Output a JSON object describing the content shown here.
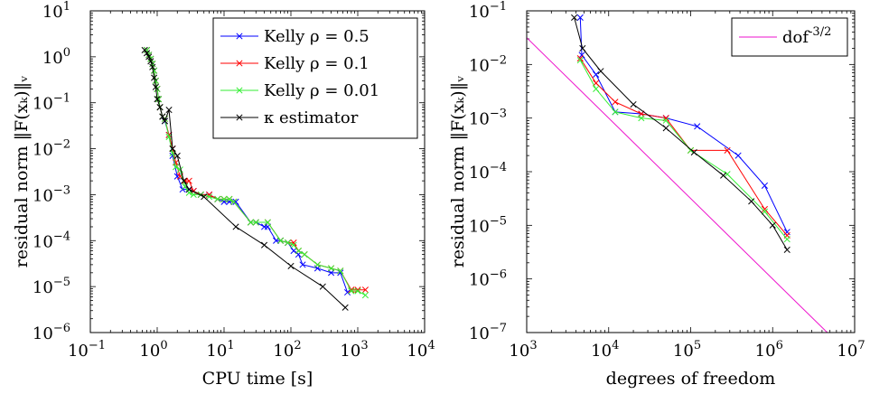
{
  "chart_data": [
    {
      "type": "line",
      "xlabel": "CPU time [s]",
      "ylabel": "residual norm ‖F(xₖ)‖ᵥ",
      "xscale": "log",
      "yscale": "log",
      "xlim": [
        0.1,
        10000
      ],
      "ylim": [
        1e-06,
        10
      ],
      "xticks": [
        {
          "base": "10",
          "exp": "−1",
          "value": 0.1
        },
        {
          "base": "10",
          "exp": "0",
          "value": 1
        },
        {
          "base": "10",
          "exp": "1",
          "value": 10
        },
        {
          "base": "10",
          "exp": "2",
          "value": 100
        },
        {
          "base": "10",
          "exp": "3",
          "value": 1000
        },
        {
          "base": "10",
          "exp": "4",
          "value": 10000
        }
      ],
      "yticks": [
        {
          "base": "10",
          "exp": "−6",
          "value": 1e-06
        },
        {
          "base": "10",
          "exp": "−5",
          "value": 1e-05
        },
        {
          "base": "10",
          "exp": "−4",
          "value": 0.0001
        },
        {
          "base": "10",
          "exp": "−3",
          "value": 0.001
        },
        {
          "base": "10",
          "exp": "−2",
          "value": 0.01
        },
        {
          "base": "10",
          "exp": "−1",
          "value": 0.1
        },
        {
          "base": "10",
          "exp": "0",
          "value": 1
        },
        {
          "base": "10",
          "exp": "1",
          "value": 10
        }
      ],
      "legend_position": "top-right",
      "grid": false,
      "series": [
        {
          "name": "Kelly ρ = 0.5",
          "color": "#0000ff",
          "marker": "x",
          "x": [
            0.7,
            0.75,
            0.8,
            0.85,
            0.9,
            0.95,
            1.0,
            1.05,
            1.1,
            1.2,
            1.3,
            1.5,
            1.7,
            2.0,
            2.4,
            3.0,
            3.5,
            4.5,
            6,
            8,
            10,
            12,
            15,
            25,
            30,
            40,
            45,
            60,
            70,
            90,
            110,
            130,
            150,
            250,
            400,
            550,
            700
          ],
          "y": [
            1.4,
            1.1,
            0.9,
            0.7,
            0.5,
            0.3,
            0.2,
            0.12,
            0.08,
            0.05,
            0.04,
            0.02,
            0.007,
            0.0025,
            0.0013,
            0.0013,
            0.0012,
            0.001,
            0.001,
            0.0008,
            0.0007,
            0.0007,
            0.0007,
            0.00025,
            0.00025,
            0.0002,
            0.0002,
            0.0001,
            0.0001,
            9e-05,
            6e-05,
            5e-05,
            3e-05,
            2.5e-05,
            2e-05,
            2e-05,
            7.5e-06
          ]
        },
        {
          "name": "Kelly ρ = 0.1",
          "color": "#ff0000",
          "marker": "x",
          "x": [
            0.7,
            0.75,
            0.8,
            0.85,
            0.9,
            0.95,
            1.0,
            1.05,
            1.1,
            1.2,
            1.3,
            1.5,
            1.7,
            1.9,
            2.2,
            2.6,
            3.0,
            3.5,
            4.5,
            6,
            8,
            10,
            12,
            14,
            25,
            30,
            45,
            70,
            90,
            110,
            130,
            160,
            250,
            400,
            550,
            800,
            1000,
            1300
          ],
          "y": [
            1.4,
            1.1,
            0.9,
            0.7,
            0.5,
            0.3,
            0.2,
            0.12,
            0.08,
            0.05,
            0.045,
            0.02,
            0.01,
            0.005,
            0.0025,
            0.002,
            0.002,
            0.0012,
            0.001,
            0.001,
            0.0008,
            0.0008,
            0.0008,
            0.0007,
            0.00025,
            0.00025,
            0.00025,
            0.0001,
            9e-05,
            9e-05,
            6e-05,
            5e-05,
            3e-05,
            2.5e-05,
            2.2e-05,
            8.5e-06,
            8.5e-06,
            8.5e-06
          ]
        },
        {
          "name": "Kelly ρ = 0.01",
          "color": "#33ee33",
          "marker": "x",
          "x": [
            0.7,
            0.75,
            0.8,
            0.85,
            0.9,
            0.95,
            1.0,
            1.05,
            1.1,
            1.2,
            1.3,
            1.5,
            1.7,
            1.9,
            2.2,
            2.6,
            3.0,
            3.5,
            4.5,
            6,
            8,
            10,
            12,
            14,
            25,
            30,
            45,
            70,
            90,
            110,
            130,
            160,
            250,
            400,
            550,
            800,
            1000,
            1300
          ],
          "y": [
            1.4,
            1.1,
            0.9,
            0.7,
            0.5,
            0.3,
            0.2,
            0.12,
            0.08,
            0.05,
            0.045,
            0.018,
            0.008,
            0.004,
            0.0035,
            0.0015,
            0.0011,
            0.001,
            0.001,
            0.0009,
            0.0008,
            0.0008,
            0.0008,
            0.0007,
            0.00025,
            0.00025,
            0.00025,
            0.0001,
            9e-05,
            8e-05,
            6e-05,
            5e-05,
            3e-05,
            2.5e-05,
            2.2e-05,
            8e-06,
            8e-06,
            6.5e-06
          ]
        },
        {
          "name": "κ estimator",
          "color": "#000000",
          "marker": "x",
          "x": [
            0.65,
            0.7,
            0.75,
            0.8,
            0.85,
            0.9,
            0.95,
            1.0,
            1.1,
            1.2,
            1.3,
            1.5,
            1.7,
            2.0,
            2.5,
            3.0,
            5,
            15,
            40,
            100,
            300,
            650
          ],
          "y": [
            1.4,
            1.2,
            1.0,
            0.8,
            0.6,
            0.35,
            0.22,
            0.12,
            0.08,
            0.05,
            0.04,
            0.07,
            0.01,
            0.007,
            0.002,
            0.0013,
            0.0009,
            0.0002,
            8e-05,
            2.8e-05,
            1e-05,
            3.5e-06
          ]
        }
      ]
    },
    {
      "type": "line",
      "xlabel": "degrees of freedom",
      "ylabel": "residual norm ‖F(xₖ)‖ᵥ",
      "xscale": "log",
      "yscale": "log",
      "xlim": [
        1000,
        10000000
      ],
      "ylim": [
        1e-07,
        0.1
      ],
      "xticks": [
        {
          "base": "10",
          "exp": "3",
          "value": 1000
        },
        {
          "base": "10",
          "exp": "4",
          "value": 10000
        },
        {
          "base": "10",
          "exp": "5",
          "value": 100000
        },
        {
          "base": "10",
          "exp": "6",
          "value": 1000000
        },
        {
          "base": "10",
          "exp": "7",
          "value": 10000000
        }
      ],
      "yticks": [
        {
          "base": "10",
          "exp": "−7",
          "value": 1e-07
        },
        {
          "base": "10",
          "exp": "−6",
          "value": 1e-06
        },
        {
          "base": "10",
          "exp": "−5",
          "value": 1e-05
        },
        {
          "base": "10",
          "exp": "−4",
          "value": 0.0001
        },
        {
          "base": "10",
          "exp": "−3",
          "value": 0.001
        },
        {
          "base": "10",
          "exp": "−2",
          "value": 0.01
        },
        {
          "base": "10",
          "exp": "−1",
          "value": 0.1
        }
      ],
      "legend_position": "top-right",
      "grid": false,
      "series": [
        {
          "name": "",
          "color": "#0000ff",
          "marker": "x",
          "x": [
            4500,
            4700,
            7000,
            12000,
            25000,
            50000,
            120000,
            380000,
            800000,
            1500000
          ],
          "y": [
            0.075,
            0.015,
            0.0065,
            0.0013,
            0.0012,
            0.001,
            0.0007,
            0.0002,
            5.5e-05,
            7.5e-06
          ]
        },
        {
          "name": "",
          "color": "#ff0000",
          "marker": "x",
          "x": [
            4500,
            7000,
            12000,
            25000,
            50000,
            100000,
            280000,
            800000,
            1500000
          ],
          "y": [
            0.013,
            0.0045,
            0.002,
            0.0012,
            0.001,
            0.00025,
            0.00025,
            2e-05,
            6.5e-06
          ]
        },
        {
          "name": "",
          "color": "#33ee33",
          "marker": "x",
          "x": [
            4500,
            7000,
            12000,
            25000,
            50000,
            100000,
            280000,
            800000,
            1500000
          ],
          "y": [
            0.012,
            0.0035,
            0.0013,
            0.001,
            0.0009,
            0.00025,
            9e-05,
            1.8e-05,
            5.5e-06
          ]
        },
        {
          "name": "",
          "color": "#000000",
          "marker": "x",
          "x": [
            3800,
            4800,
            8000,
            20000,
            50000,
            110000,
            250000,
            550000,
            1000000,
            1500000
          ],
          "y": [
            0.075,
            0.02,
            0.0075,
            0.0018,
            0.00065,
            0.00023,
            8.5e-05,
            2.8e-05,
            1e-05,
            3.5e-06
          ]
        }
      ],
      "reference_line": {
        "label": "dof",
        "exponent_label": "-3/2",
        "color": "#ee11cc",
        "x": [
          1000,
          10000000
        ],
        "y": [
          0.0316,
          3.16e-08
        ]
      }
    }
  ]
}
